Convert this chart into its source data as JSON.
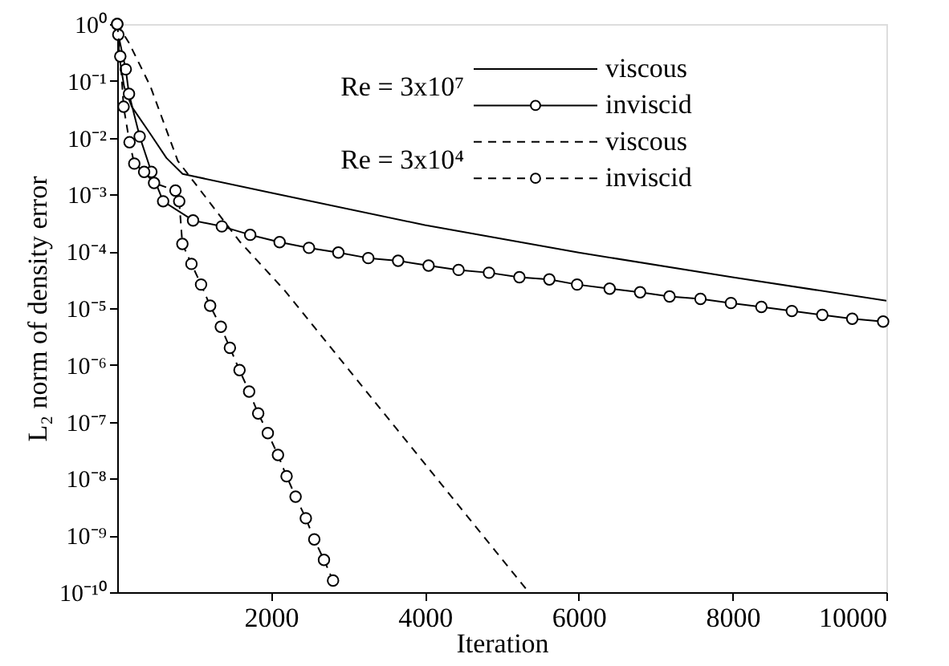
{
  "chart_data": {
    "type": "line",
    "xlabel": "Iteration",
    "ylabel": "L₂ norm of density error",
    "log": "y",
    "legend": "top right",
    "xlim": [
      0,
      10000
    ],
    "xticks": [
      2000,
      4000,
      6000,
      8000,
      10000
    ],
    "ylim": [
      1e-10,
      1
    ],
    "yticks": [
      {
        "value": 1,
        "label": "10⁰"
      },
      {
        "value": 0.1,
        "label": "10⁻¹"
      },
      {
        "value": 0.01,
        "label": "10⁻²"
      },
      {
        "value": 0.001,
        "label": "10⁻³"
      },
      {
        "value": 0.0001,
        "label": "10⁻⁴"
      },
      {
        "value": 1e-05,
        "label": "10⁻⁵"
      },
      {
        "value": 1e-06,
        "label": "10⁻⁶"
      },
      {
        "value": 1e-07,
        "label": "10⁻⁷"
      },
      {
        "value": 1e-08,
        "label": "10⁻⁸"
      },
      {
        "value": 1e-09,
        "label": "10⁻⁹"
      },
      {
        "value": 1e-10,
        "label": "10⁻¹⁰"
      }
    ],
    "annotations": [
      "Re = 3x10⁷",
      "Re = 3x10⁴"
    ],
    "series": [
      {
        "name": "viscous",
        "color": "#000000",
        "line_style": "solid",
        "marker": "none",
        "x": [
          0,
          30,
          90,
          190,
          430,
          640,
          850,
          2000,
          4000,
          6000,
          8000,
          10000
        ],
        "values": [
          1,
          0.25,
          0.079,
          0.035,
          0.0117,
          0.0044,
          0.0023,
          0.00107,
          0.00029,
          9.5e-05,
          3.5e-05,
          1.35e-05
        ]
      },
      {
        "name": "inviscid",
        "color": "#000000",
        "line_style": "solid",
        "marker": "circle",
        "x": [
          0,
          14,
          111,
          153,
          292,
          444,
          597,
          986,
          1360,
          1729,
          2111,
          2493,
          2875,
          3264,
          3652,
          4048,
          4438,
          4833,
          5229,
          5618,
          5979,
          6402,
          6798,
          7181,
          7583,
          7979,
          8375,
          8771,
          9167,
          9556,
          9958
        ],
        "values": [
          1,
          0.65,
          0.16,
          0.059,
          0.0105,
          0.0025,
          0.00076,
          0.00035,
          0.000275,
          0.000195,
          0.000145,
          0.000115,
          9.5e-05,
          7.6e-05,
          6.8e-05,
          5.6e-05,
          4.7e-05,
          4.2e-05,
          3.5e-05,
          3.2e-05,
          2.6e-05,
          2.2e-05,
          1.9e-05,
          1.6e-05,
          1.45e-05,
          1.23e-05,
          1.05e-05,
          8.9e-06,
          7.6e-06,
          6.5e-06,
          5.8e-06
        ]
      },
      {
        "name": "viscous",
        "color": "#000000",
        "line_style": "dashed",
        "marker": "none",
        "x": [
          0,
          152,
          430,
          788,
          1590,
          2170,
          5350
        ],
        "values": [
          1,
          0.47,
          0.081,
          0.0039,
          0.00015,
          2.1e-05,
          1e-10
        ]
      },
      {
        "name": "inviscid",
        "color": "#000000",
        "line_style": "dashed",
        "marker": "circle",
        "x": [
          0,
          40,
          83,
          160,
          222,
          350,
          479,
          757,
          806,
          847,
          965,
          1090,
          1208,
          1347,
          1465,
          1590,
          1715,
          1833,
          1958,
          2090,
          2202,
          2319,
          2452,
          2562,
          2688,
          2806
        ],
        "values": [
          1,
          0.27,
          0.035,
          0.0083,
          0.0035,
          0.0025,
          0.0016,
          0.00117,
          0.00076,
          0.000135,
          6e-05,
          2.6e-05,
          1.1e-05,
          4.7e-06,
          2e-06,
          8.1e-07,
          3.4e-07,
          1.4e-07,
          6.3e-08,
          2.6e-08,
          1.1e-08,
          4.8e-09,
          2e-09,
          8.5e-10,
          3.7e-10,
          1.6e-10
        ]
      }
    ]
  }
}
